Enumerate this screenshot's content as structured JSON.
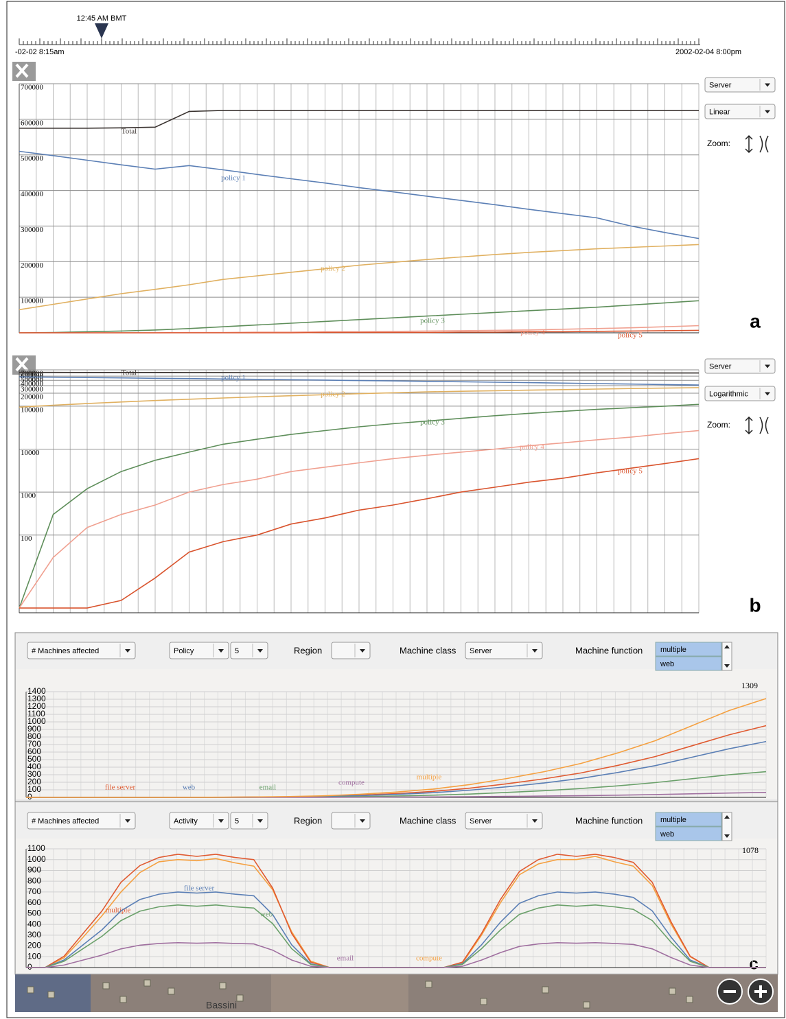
{
  "timeline": {
    "marker": "12:45 AM BMT",
    "start": "-02-02 8:15am",
    "end": "2002-02-04 8:00pm"
  },
  "controls_a": {
    "source": "Server",
    "scale": "Linear",
    "zoom": "Zoom:",
    "label": "a"
  },
  "controls_b": {
    "source": "Server",
    "scale": "Logarithmic",
    "zoom": "Zoom:",
    "label": "b"
  },
  "controls_c1": {
    "measure": "# Machines affected",
    "group": "Policy",
    "count": 5,
    "region_label": "Region",
    "class_label": "Machine class",
    "class": "Server",
    "function_label": "Machine function",
    "functions": [
      "multiple",
      "web"
    ]
  },
  "controls_c2": {
    "measure": "# Machines affected",
    "group": "Activity",
    "count": 5,
    "region_label": "Region",
    "class_label": "Machine class",
    "class": "Server",
    "function_label": "Machine function",
    "functions": [
      "multiple",
      "web"
    ]
  },
  "panel_label": "c",
  "map_label": "Bassini",
  "chart_data": [
    {
      "type": "line",
      "log_scale": false,
      "grid": true,
      "categories": [
        null,
        null,
        null,
        null,
        null,
        null,
        null,
        null,
        null,
        null,
        null,
        null,
        null,
        null,
        null,
        null,
        null,
        null,
        null,
        null,
        null
      ],
      "ylim": [
        0,
        700000
      ],
      "yticks": [
        100000,
        200000,
        300000,
        400000,
        500000,
        600000,
        700000
      ],
      "series": [
        {
          "name": "Total",
          "color": "#3a3330",
          "values": [
            575000,
            575000,
            575000,
            576000,
            578000,
            622000,
            625000,
            625000,
            625000,
            625000,
            625000,
            625000,
            625000,
            625000,
            625000,
            625000,
            625000,
            625000,
            625000,
            625000,
            625000
          ]
        },
        {
          "name": "policy 1",
          "color": "#5b7fb5",
          "values": [
            510000,
            498000,
            485000,
            472000,
            460000,
            470000,
            458000,
            445000,
            433000,
            421000,
            408000,
            396000,
            384000,
            372000,
            360000,
            347000,
            335000,
            323000,
            300000,
            282000,
            265000
          ]
        },
        {
          "name": "policy 2",
          "color": "#e0b060",
          "values": [
            65000,
            80000,
            95000,
            110000,
            122000,
            135000,
            150000,
            160000,
            170000,
            180000,
            190000,
            198000,
            206000,
            213000,
            220000,
            226000,
            231000,
            236000,
            240000,
            244000,
            248000
          ]
        },
        {
          "name": "policy 3",
          "color": "#5e8e5a",
          "values": [
            0,
            1000,
            3000,
            5000,
            8000,
            12000,
            17000,
            22000,
            27000,
            32000,
            37000,
            42000,
            47000,
            52000,
            57000,
            62000,
            67000,
            72000,
            78000,
            84000,
            90000
          ]
        },
        {
          "name": "policy 4",
          "color": "#f0a090",
          "values": [
            0,
            0,
            0,
            0,
            0,
            1000,
            1000,
            2000,
            2000,
            3000,
            3000,
            4000,
            5000,
            6000,
            7000,
            8000,
            10000,
            12000,
            14000,
            17000,
            20000
          ]
        },
        {
          "name": "policy 5",
          "color": "#d9542e",
          "values": [
            0,
            0,
            0,
            0,
            0,
            0,
            0,
            0,
            0,
            1000,
            1000,
            1000,
            1000,
            2000,
            2000,
            3000,
            3000,
            4000,
            5000,
            6000,
            7000
          ]
        }
      ]
    },
    {
      "type": "line",
      "log_scale": true,
      "grid": true,
      "categories": [
        null,
        null,
        null,
        null,
        null,
        null,
        null,
        null,
        null,
        null,
        null,
        null,
        null,
        null,
        null,
        null,
        null,
        null,
        null,
        null,
        null
      ],
      "ylim": [
        1.55,
        700000
      ],
      "yticks": [
        100,
        1000,
        10000,
        100000,
        200000,
        300000,
        400000,
        500000,
        600000,
        700000
      ],
      "series": [
        {
          "name": "Total",
          "color": "#3a3330",
          "values": [
            610000,
            610000,
            609000,
            608000,
            608000,
            607000,
            606000,
            605000,
            604000,
            603000,
            602000,
            601000,
            600000,
            599000,
            598000,
            597000,
            596000,
            595000,
            594000,
            592000,
            590000
          ]
        },
        {
          "name": "policy 1",
          "color": "#5b7fb5",
          "values": [
            480000,
            472000,
            463000,
            455000,
            446000,
            438000,
            429000,
            421000,
            412000,
            404000,
            395000,
            387000,
            378000,
            370000,
            361000,
            353000,
            344000,
            336000,
            327000,
            319000,
            310000
          ]
        },
        {
          "name": "policy 2",
          "color": "#e0b060",
          "values": [
            95000,
            105000,
            115000,
            125000,
            135000,
            145000,
            155000,
            165000,
            175000,
            185000,
            195000,
            205000,
            215000,
            222000,
            229000,
            236000,
            243000,
            250000,
            257000,
            263000,
            270000
          ]
        },
        {
          "name": "policy 3",
          "color": "#5e8e5a",
          "values": [
            2,
            300,
            1200,
            3000,
            5500,
            8500,
            13000,
            17000,
            22000,
            27000,
            33000,
            39000,
            45000,
            52000,
            60000,
            68000,
            76000,
            84000,
            92000,
            100000,
            110000
          ]
        },
        {
          "name": "policy 4",
          "color": "#f0a090",
          "values": [
            2,
            30,
            150,
            300,
            500,
            1000,
            1500,
            2000,
            3000,
            3800,
            4800,
            6000,
            7200,
            8500,
            10000,
            12000,
            14000,
            16500,
            19000,
            23000,
            27000
          ]
        },
        {
          "name": "policy 5",
          "color": "#d9542e",
          "values": [
            2,
            2,
            2,
            3,
            10,
            40,
            70,
            100,
            180,
            250,
            380,
            500,
            700,
            1000,
            1300,
            1700,
            2100,
            2800,
            3600,
            4600,
            6000
          ]
        }
      ]
    },
    {
      "type": "line",
      "log_scale": false,
      "grid": true,
      "annotation": "1309",
      "categories": [
        null,
        null,
        null,
        null,
        null,
        null,
        null,
        null,
        null,
        null,
        null,
        null,
        null,
        null,
        null,
        null,
        null,
        null,
        null,
        null,
        null
      ],
      "ylim": [
        0,
        1400
      ],
      "yticks": [
        0,
        100,
        200,
        300,
        400,
        500,
        600,
        700,
        800,
        900,
        1000,
        1100,
        1200,
        1300,
        1400
      ],
      "series": [
        {
          "name": "file server",
          "color": "#e05a30",
          "values": [
            0,
            0,
            0,
            0,
            0,
            1,
            4,
            7,
            14,
            29,
            50,
            79,
            122,
            180,
            245,
            324,
            425,
            540,
            684,
            828,
            950
          ]
        },
        {
          "name": "web",
          "color": "#5b7fb5",
          "values": [
            0,
            0,
            0,
            0,
            0,
            1,
            3,
            6,
            11,
            22,
            39,
            62,
            95,
            140,
            190,
            252,
            330,
            420,
            532,
            644,
            740
          ]
        },
        {
          "name": "email",
          "color": "#6aa06a",
          "values": [
            0,
            0,
            0,
            0,
            0,
            0,
            1,
            3,
            5,
            10,
            18,
            29,
            44,
            65,
            88,
            117,
            153,
            195,
            247,
            299,
            340
          ]
        },
        {
          "name": "compute",
          "color": "#a070a0",
          "values": [
            0,
            0,
            0,
            0,
            0,
            0,
            0,
            1,
            1,
            2,
            4,
            6,
            9,
            13,
            17,
            22,
            29,
            37,
            47,
            57,
            65
          ]
        },
        {
          "name": "multiple",
          "color": "#f5a040",
          "values": [
            0,
            0,
            0,
            0,
            0,
            2,
            5,
            10,
            20,
            40,
            70,
            110,
            170,
            250,
            340,
            450,
            590,
            750,
            950,
            1150,
            1309
          ]
        }
      ]
    },
    {
      "type": "line",
      "log_scale": false,
      "grid": true,
      "annotation": "1078",
      "categories": [
        null,
        null,
        null,
        null,
        null,
        null,
        null,
        null,
        null,
        null,
        null,
        null,
        null,
        null,
        null,
        null,
        null,
        null,
        null,
        null,
        null,
        null,
        null,
        null,
        null,
        null,
        null,
        null,
        null,
        null,
        null,
        null,
        null,
        null,
        null,
        null,
        null,
        null,
        null,
        null
      ],
      "ylim": [
        0,
        1100
      ],
      "yticks": [
        0,
        100,
        200,
        300,
        400,
        500,
        600,
        700,
        800,
        900,
        1000,
        1100
      ],
      "series": [
        {
          "name": "compute",
          "color": "#f5a040",
          "values": [
            0,
            0,
            90,
            280,
            480,
            700,
            880,
            980,
            1000,
            990,
            1010,
            970,
            940,
            720,
            330,
            60,
            0,
            0,
            0,
            0,
            0,
            0,
            0,
            40,
            300,
            600,
            860,
            960,
            1000,
            1000,
            1030,
            980,
            940,
            760,
            400,
            100,
            0,
            0,
            0,
            0
          ]
        },
        {
          "name": "multiple",
          "color": "#e05a30",
          "values": [
            0,
            0,
            105,
            315,
            525,
            790,
            945,
            1020,
            1050,
            1030,
            1050,
            1020,
            1000,
            735,
            315,
            50,
            0,
            0,
            0,
            0,
            0,
            0,
            0,
            50,
            315,
            630,
            890,
            1000,
            1050,
            1030,
            1050,
            1020,
            975,
            790,
            420,
            105,
            0,
            0,
            0,
            0
          ]
        },
        {
          "name": "file server",
          "color": "#5b7fb5",
          "values": [
            0,
            0,
            70,
            210,
            350,
            525,
            630,
            680,
            700,
            690,
            700,
            680,
            665,
            490,
            210,
            35,
            0,
            0,
            0,
            0,
            0,
            0,
            0,
            35,
            210,
            420,
            595,
            665,
            700,
            690,
            700,
            680,
            650,
            525,
            280,
            70,
            0,
            0,
            0,
            0
          ]
        },
        {
          "name": "web",
          "color": "#6aa06a",
          "values": [
            0,
            0,
            58,
            174,
            290,
            435,
            522,
            563,
            580,
            568,
            580,
            563,
            551,
            406,
            174,
            29,
            0,
            0,
            0,
            0,
            0,
            0,
            0,
            29,
            174,
            348,
            493,
            551,
            580,
            568,
            580,
            563,
            539,
            435,
            232,
            58,
            0,
            0,
            0,
            0
          ]
        },
        {
          "name": "email",
          "color": "#a070a0",
          "values": [
            0,
            0,
            23,
            69,
            115,
            173,
            207,
            223,
            230,
            225,
            230,
            223,
            219,
            161,
            69,
            12,
            0,
            0,
            0,
            0,
            0,
            0,
            0,
            12,
            69,
            138,
            196,
            219,
            230,
            225,
            230,
            223,
            214,
            173,
            92,
            23,
            0,
            0,
            0,
            0
          ]
        }
      ]
    }
  ]
}
